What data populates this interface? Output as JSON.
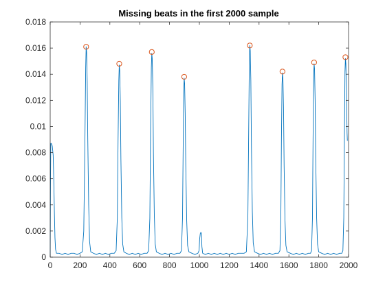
{
  "colors": {
    "background": "#ffffff",
    "axis": "#262626",
    "line": "#0072BD",
    "marker": "#D95319"
  },
  "chart_data": {
    "type": "line",
    "title": "Missing beats in the first 2000 sample",
    "xlabel": "",
    "ylabel": "",
    "xlim": [
      0,
      2000
    ],
    "ylim": [
      0,
      0.018
    ],
    "grid": false,
    "box": true,
    "x_ticks": [
      0,
      200,
      400,
      600,
      800,
      1000,
      1200,
      1400,
      1600,
      1800,
      2000
    ],
    "x_tick_labels": [
      "0",
      "200",
      "400",
      "600",
      "800",
      "1000",
      "1200",
      "1400",
      "1600",
      "1800",
      "2000"
    ],
    "y_ticks": [
      0,
      0.002,
      0.004,
      0.006,
      0.008,
      0.01,
      0.012,
      0.014,
      0.016,
      0.018
    ],
    "y_tick_labels": [
      "0",
      "0.002",
      "0.004",
      "0.006",
      "0.008",
      "0.01",
      "0.012",
      "0.014",
      "0.016",
      "0.018"
    ],
    "series": [
      {
        "kind": "line",
        "points": [
          [
            0,
            0.0
          ],
          [
            2,
            0.0055
          ],
          [
            4,
            0.0087
          ],
          [
            8,
            0.0087
          ],
          [
            14,
            0.0085
          ],
          [
            20,
            0.0078
          ],
          [
            24,
            0.006
          ],
          [
            28,
            0.0035
          ],
          [
            32,
            0.0015
          ],
          [
            36,
            0.0006
          ],
          [
            42,
            0.0003
          ],
          [
            60,
            0.0003
          ],
          [
            80,
            0.0002
          ],
          [
            100,
            0.0003
          ],
          [
            120,
            0.0002
          ],
          [
            140,
            0.0003
          ],
          [
            160,
            0.0003
          ],
          [
            180,
            0.0002
          ],
          [
            200,
            0.0003
          ],
          [
            215,
            0.0004
          ],
          [
            225,
            0.002
          ],
          [
            232,
            0.008
          ],
          [
            238,
            0.0145
          ],
          [
            241,
            0.0161
          ],
          [
            244,
            0.0157
          ],
          [
            248,
            0.0135
          ],
          [
            252,
            0.009
          ],
          [
            258,
            0.004
          ],
          [
            264,
            0.0012
          ],
          [
            272,
            0.0004
          ],
          [
            290,
            0.0003
          ],
          [
            310,
            0.0002
          ],
          [
            330,
            0.0003
          ],
          [
            350,
            0.0002
          ],
          [
            370,
            0.0003
          ],
          [
            390,
            0.0002
          ],
          [
            410,
            0.0003
          ],
          [
            430,
            0.0003
          ],
          [
            442,
            0.0005
          ],
          [
            450,
            0.003
          ],
          [
            455,
            0.009
          ],
          [
            460,
            0.0135
          ],
          [
            463,
            0.0147
          ],
          [
            466,
            0.0143
          ],
          [
            470,
            0.012
          ],
          [
            474,
            0.0075
          ],
          [
            480,
            0.003
          ],
          [
            486,
            0.001
          ],
          [
            494,
            0.0004
          ],
          [
            510,
            0.0003
          ],
          [
            530,
            0.0002
          ],
          [
            550,
            0.0003
          ],
          [
            570,
            0.0002
          ],
          [
            590,
            0.0003
          ],
          [
            610,
            0.0002
          ],
          [
            630,
            0.0003
          ],
          [
            650,
            0.0003
          ],
          [
            660,
            0.0005
          ],
          [
            668,
            0.003
          ],
          [
            673,
            0.0095
          ],
          [
            678,
            0.0145
          ],
          [
            681,
            0.0156
          ],
          [
            684,
            0.0152
          ],
          [
            688,
            0.013
          ],
          [
            692,
            0.008
          ],
          [
            698,
            0.0032
          ],
          [
            704,
            0.001
          ],
          [
            712,
            0.0004
          ],
          [
            730,
            0.0003
          ],
          [
            750,
            0.0002
          ],
          [
            770,
            0.0003
          ],
          [
            790,
            0.0002
          ],
          [
            810,
            0.0003
          ],
          [
            830,
            0.0002
          ],
          [
            850,
            0.0003
          ],
          [
            870,
            0.0003
          ],
          [
            880,
            0.0005
          ],
          [
            887,
            0.003
          ],
          [
            891,
            0.008
          ],
          [
            895,
            0.0125
          ],
          [
            898,
            0.0137
          ],
          [
            901,
            0.0133
          ],
          [
            905,
            0.011
          ],
          [
            909,
            0.007
          ],
          [
            915,
            0.0028
          ],
          [
            921,
            0.0009
          ],
          [
            930,
            0.0004
          ],
          [
            950,
            0.0003
          ],
          [
            970,
            0.0002
          ],
          [
            990,
            0.0003
          ],
          [
            998,
            0.0005
          ],
          [
            1002,
            0.0014
          ],
          [
            1006,
            0.0018
          ],
          [
            1010,
            0.0019
          ],
          [
            1014,
            0.0018
          ],
          [
            1017,
            0.0008
          ],
          [
            1022,
            0.0003
          ],
          [
            1040,
            0.0002
          ],
          [
            1060,
            0.0003
          ],
          [
            1080,
            0.0002
          ],
          [
            1100,
            0.0003
          ],
          [
            1120,
            0.0002
          ],
          [
            1140,
            0.0003
          ],
          [
            1160,
            0.0002
          ],
          [
            1180,
            0.0003
          ],
          [
            1200,
            0.0002
          ],
          [
            1220,
            0.0003
          ],
          [
            1240,
            0.0002
          ],
          [
            1260,
            0.0003
          ],
          [
            1280,
            0.0003
          ],
          [
            1300,
            0.0003
          ],
          [
            1315,
            0.0004
          ],
          [
            1325,
            0.003
          ],
          [
            1330,
            0.009
          ],
          [
            1335,
            0.015
          ],
          [
            1338,
            0.0162
          ],
          [
            1341,
            0.0158
          ],
          [
            1345,
            0.0135
          ],
          [
            1349,
            0.0085
          ],
          [
            1355,
            0.0035
          ],
          [
            1361,
            0.0011
          ],
          [
            1370,
            0.0004
          ],
          [
            1390,
            0.0003
          ],
          [
            1410,
            0.0002
          ],
          [
            1430,
            0.0003
          ],
          [
            1450,
            0.0002
          ],
          [
            1470,
            0.0003
          ],
          [
            1490,
            0.0002
          ],
          [
            1510,
            0.0003
          ],
          [
            1530,
            0.0003
          ],
          [
            1540,
            0.0005
          ],
          [
            1546,
            0.003
          ],
          [
            1550,
            0.009
          ],
          [
            1554,
            0.0132
          ],
          [
            1557,
            0.0141
          ],
          [
            1560,
            0.0137
          ],
          [
            1564,
            0.0115
          ],
          [
            1568,
            0.007
          ],
          [
            1574,
            0.0028
          ],
          [
            1580,
            0.0009
          ],
          [
            1588,
            0.0004
          ],
          [
            1610,
            0.0003
          ],
          [
            1630,
            0.0002
          ],
          [
            1650,
            0.0003
          ],
          [
            1670,
            0.0002
          ],
          [
            1690,
            0.0003
          ],
          [
            1710,
            0.0002
          ],
          [
            1730,
            0.0003
          ],
          [
            1745,
            0.0003
          ],
          [
            1752,
            0.0005
          ],
          [
            1758,
            0.003
          ],
          [
            1762,
            0.009
          ],
          [
            1766,
            0.0138
          ],
          [
            1769,
            0.0148
          ],
          [
            1772,
            0.0144
          ],
          [
            1776,
            0.012
          ],
          [
            1780,
            0.0075
          ],
          [
            1786,
            0.003
          ],
          [
            1792,
            0.001
          ],
          [
            1800,
            0.0004
          ],
          [
            1820,
            0.0003
          ],
          [
            1840,
            0.0002
          ],
          [
            1860,
            0.0003
          ],
          [
            1880,
            0.0002
          ],
          [
            1900,
            0.0003
          ],
          [
            1920,
            0.0002
          ],
          [
            1940,
            0.0003
          ],
          [
            1955,
            0.0003
          ],
          [
            1962,
            0.0005
          ],
          [
            1968,
            0.003
          ],
          [
            1972,
            0.009
          ],
          [
            1976,
            0.0142
          ],
          [
            1979,
            0.0152
          ],
          [
            1982,
            0.0148
          ],
          [
            1986,
            0.0125
          ],
          [
            1990,
            0.0095
          ],
          [
            1992,
            0.0089
          ]
        ]
      },
      {
        "kind": "markers",
        "marker": "circle",
        "points": [
          [
            241,
            0.0161
          ],
          [
            463,
            0.0148
          ],
          [
            681,
            0.0157
          ],
          [
            898,
            0.0138
          ],
          [
            1338,
            0.0162
          ],
          [
            1557,
            0.0142
          ],
          [
            1769,
            0.0149
          ],
          [
            1979,
            0.0153
          ]
        ]
      }
    ]
  }
}
